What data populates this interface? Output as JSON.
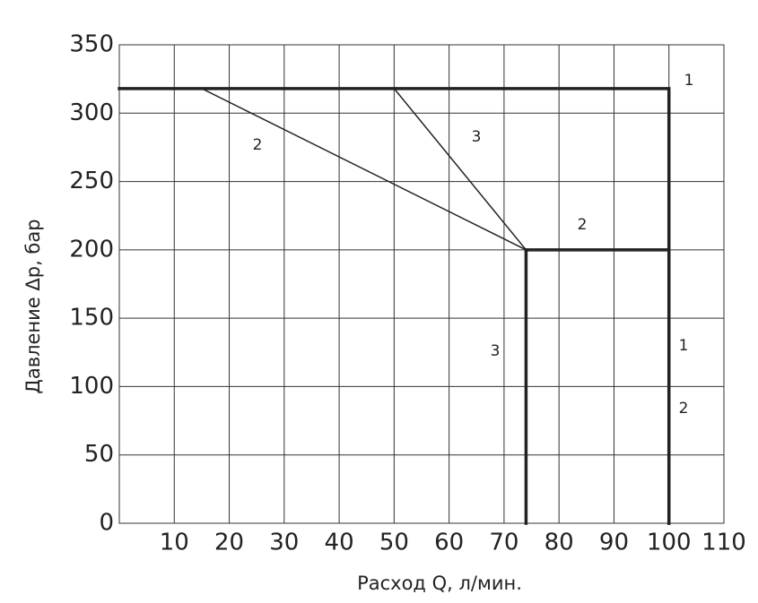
{
  "chart_data": {
    "type": "line",
    "x_label": "Расход Q, л/мин.",
    "y_label": "Давление Δр, бар",
    "xlim": [
      0,
      110
    ],
    "xticks": [
      10,
      20,
      30,
      40,
      50,
      60,
      70,
      80,
      90,
      100,
      110
    ],
    "ylim": [
      0,
      350
    ],
    "yticks": [
      0,
      50,
      100,
      150,
      200,
      250,
      300,
      350
    ],
    "grid": true,
    "series": [
      {
        "color": "#222222",
        "width": 3.5,
        "x": [
          0,
          100,
          100
        ],
        "values": [
          318,
          318,
          0
        ]
      },
      {
        "color": "#222222",
        "width": 1.5,
        "x": [
          15,
          74
        ],
        "values": [
          318,
          200
        ]
      },
      {
        "color": "#222222",
        "width": 3.5,
        "x": [
          74,
          100,
          100
        ],
        "values": [
          200,
          200,
          0
        ]
      },
      {
        "color": "#222222",
        "width": 1.5,
        "x": [
          50,
          74
        ],
        "values": [
          318,
          200
        ]
      },
      {
        "color": "#222222",
        "width": 3.5,
        "x": [
          74,
          74
        ],
        "values": [
          200,
          0
        ]
      }
    ],
    "annotations": [
      "1",
      "2",
      "3",
      "2",
      "3",
      "1",
      "2"
    ]
  }
}
